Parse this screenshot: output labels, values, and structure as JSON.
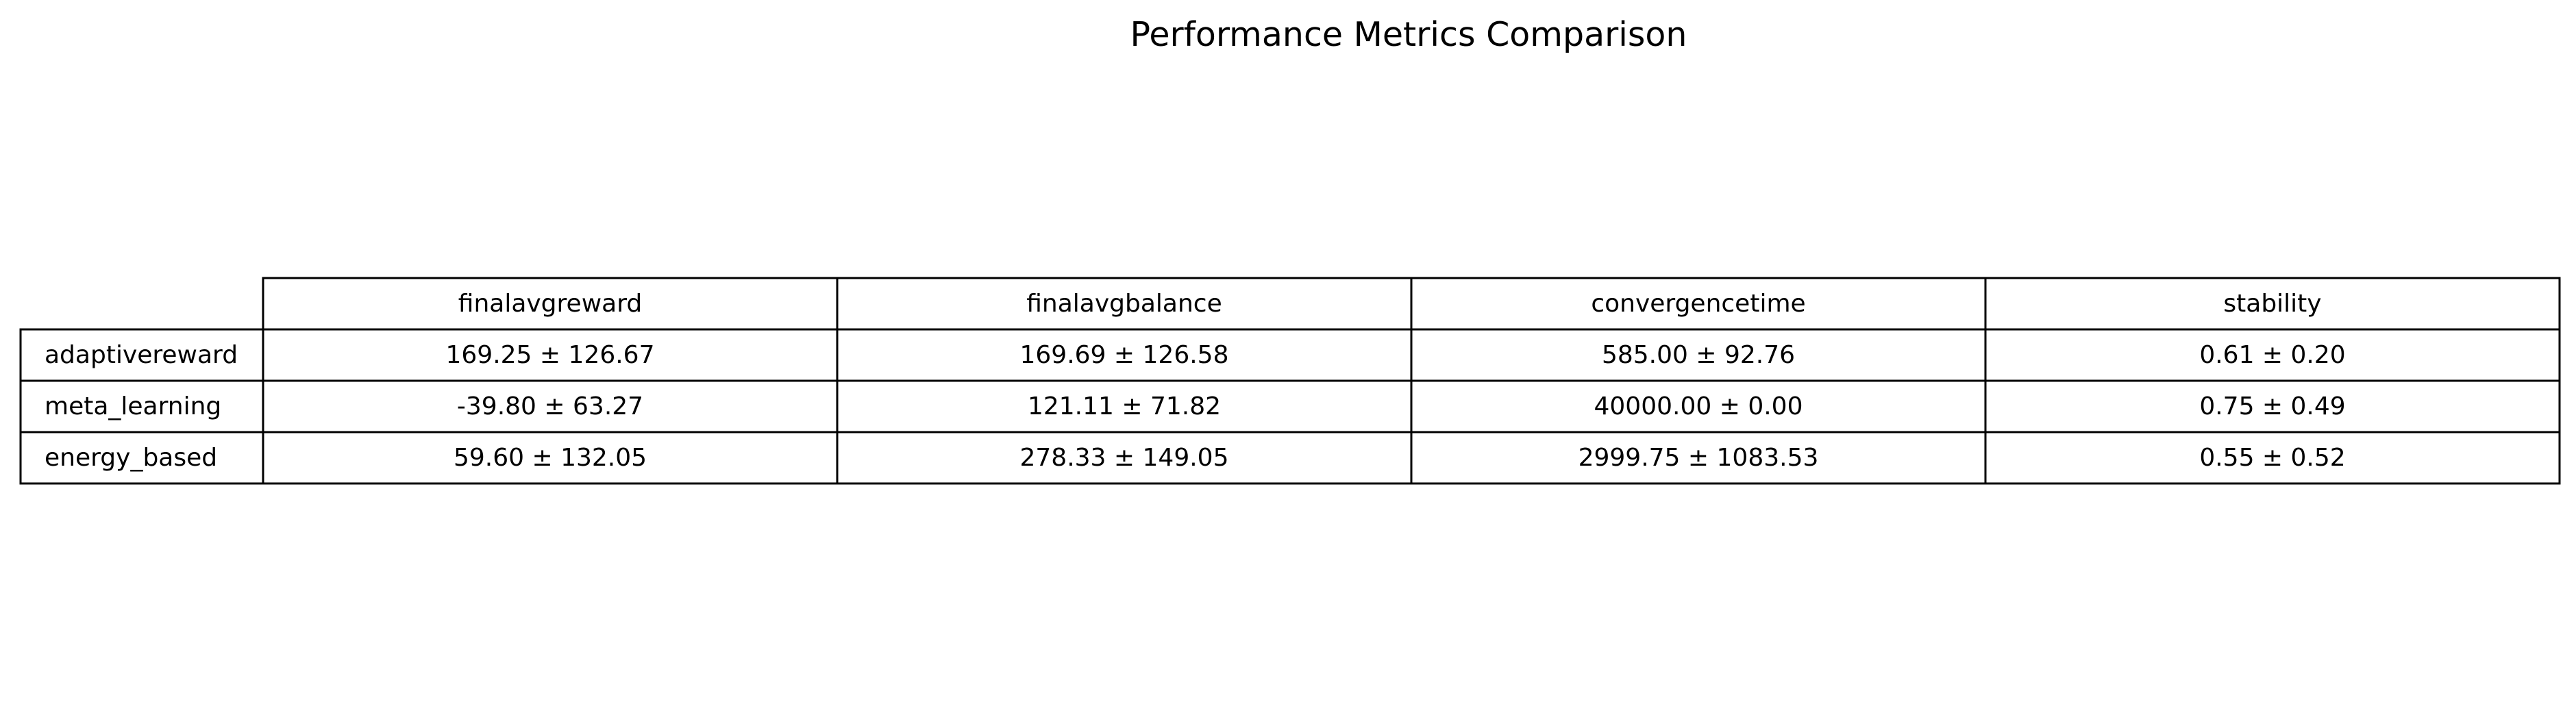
{
  "chart_data": {
    "type": "table",
    "title": "Performance Metrics Comparison",
    "columns": [
      "finalavgreward",
      "finalavgbalance",
      "convergencetime",
      "stability"
    ],
    "rows": [
      {
        "label": "adaptivereward",
        "cells": [
          "169.25 ± 126.67",
          "169.69 ± 126.58",
          "585.00 ± 92.76",
          "0.61 ± 0.20"
        ]
      },
      {
        "label": "meta_learning",
        "cells": [
          "-39.80 ± 63.27",
          "121.11 ± 71.82",
          "40000.00 ± 0.00",
          "0.75 ± 0.49"
        ]
      },
      {
        "label": "energy_based",
        "cells": [
          "59.60 ± 132.05",
          "278.33 ± 149.05",
          "2999.75 ± 1083.53",
          "0.55 ± 0.52"
        ]
      }
    ]
  }
}
